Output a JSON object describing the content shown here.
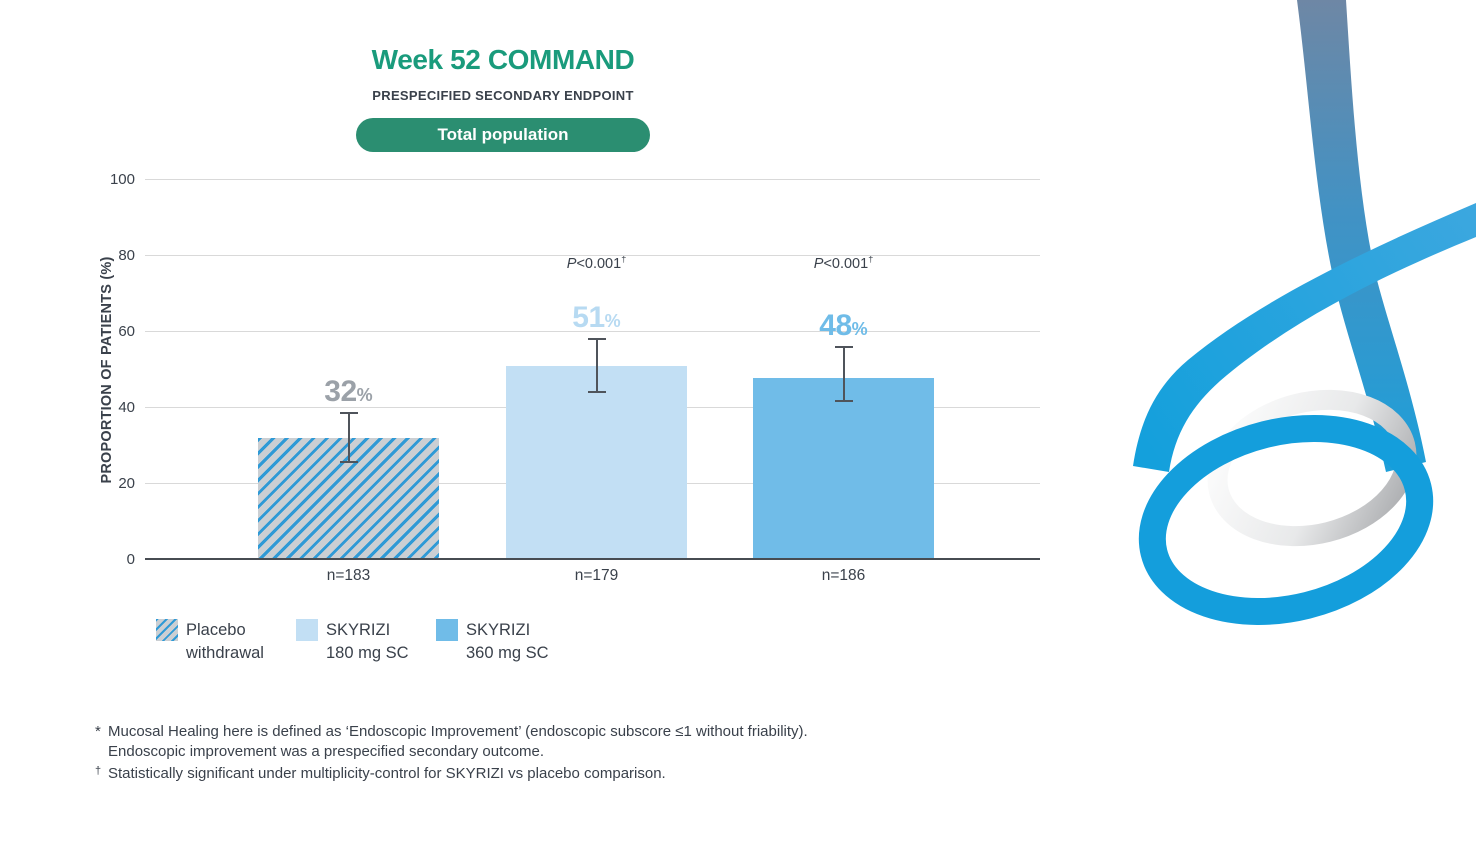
{
  "header": {
    "title": "Week 52 COMMAND",
    "subtitle": "PRESPECIFIED SECONDARY ENDPOINT",
    "badge": "Total population"
  },
  "colors": {
    "title_green": "#1A9B7C",
    "badge_green": "#2B8E71",
    "dark_text": "#3A414B",
    "grid_line": "#D9D9D9",
    "axis_line": "#474C52",
    "error_bar": "#4F545B",
    "placebo_hatch_bg": "#CBCFD3",
    "placebo_hatch_stripe": "#2F9AD6",
    "skyrizi_180_blue": "#C2DFF4",
    "skyrizi_360_blue": "#70BCE8",
    "value_label_gray": "#9BA1A8",
    "ribbon_blue": "#18A0DC"
  },
  "chart_data": {
    "type": "bar",
    "title": "Week 52 COMMAND",
    "subtitle": "PRESPECIFIED SECONDARY ENDPOINT",
    "population": "Total population",
    "xlabel": "",
    "ylabel": "PROPORTION OF PATIENTS (%)",
    "ylim": [
      0,
      100
    ],
    "y_ticks": [
      0,
      20,
      40,
      60,
      80,
      100
    ],
    "grid": true,
    "legend_position": "bottom",
    "categories": [
      "Placebo withdrawal",
      "SKYRIZI 180 mg SC",
      "SKYRIZI 360 mg SC"
    ],
    "bars": [
      {
        "id": "placebo-withdrawal",
        "group": "Placebo withdrawal",
        "value": 32,
        "value_text": "32",
        "unit": "%",
        "n": "n=183",
        "ci_low": 25.5,
        "ci_high": 39,
        "p": null,
        "fill": "hatch",
        "value_color": "#9BA1A8"
      },
      {
        "id": "skyrizi-180",
        "group": "SKYRIZI 180 mg SC",
        "value": 51,
        "value_text": "51",
        "unit": "%",
        "n": "n=179",
        "ci_low": 44,
        "ci_high": 58.5,
        "p": {
          "italic": "P",
          "rest": "<0.001",
          "sup": "†",
          "display": "P<0.001†"
        },
        "fill": "#C2DFF4",
        "value_color": "#B7DAF2"
      },
      {
        "id": "skyrizi-360",
        "group": "SKYRIZI 360 mg SC",
        "value": 48,
        "value_text": "48",
        "unit": "%",
        "n": "n=186",
        "ci_low": 41.5,
        "ci_high": 56.3,
        "p": {
          "italic": "P",
          "rest": "<0.001",
          "sup": "†",
          "display": "P<0.001†"
        },
        "fill": "#70BCE8",
        "value_color": "#6FBCE8"
      }
    ]
  },
  "legend": [
    {
      "swatch": "hatch",
      "line1": "Placebo",
      "line2": "withdrawal"
    },
    {
      "swatch": "#C2DFF4",
      "line1": "SKYRIZI",
      "line2": "180 mg SC"
    },
    {
      "swatch": "#70BCE8",
      "line1": "SKYRIZI",
      "line2": "360 mg SC"
    }
  ],
  "footnotes": {
    "fn1_marker": "*",
    "fn1_text": "Mucosal Healing here is defined as ‘Endoscopic Improvement’ (endoscopic subscore ≤1 without friability). Endoscopic improvement was a prespecified secondary outcome.",
    "fn2_marker": "†",
    "fn2_text": "Statistically significant under multiplicity-control for SKYRIZI vs placebo comparison."
  }
}
